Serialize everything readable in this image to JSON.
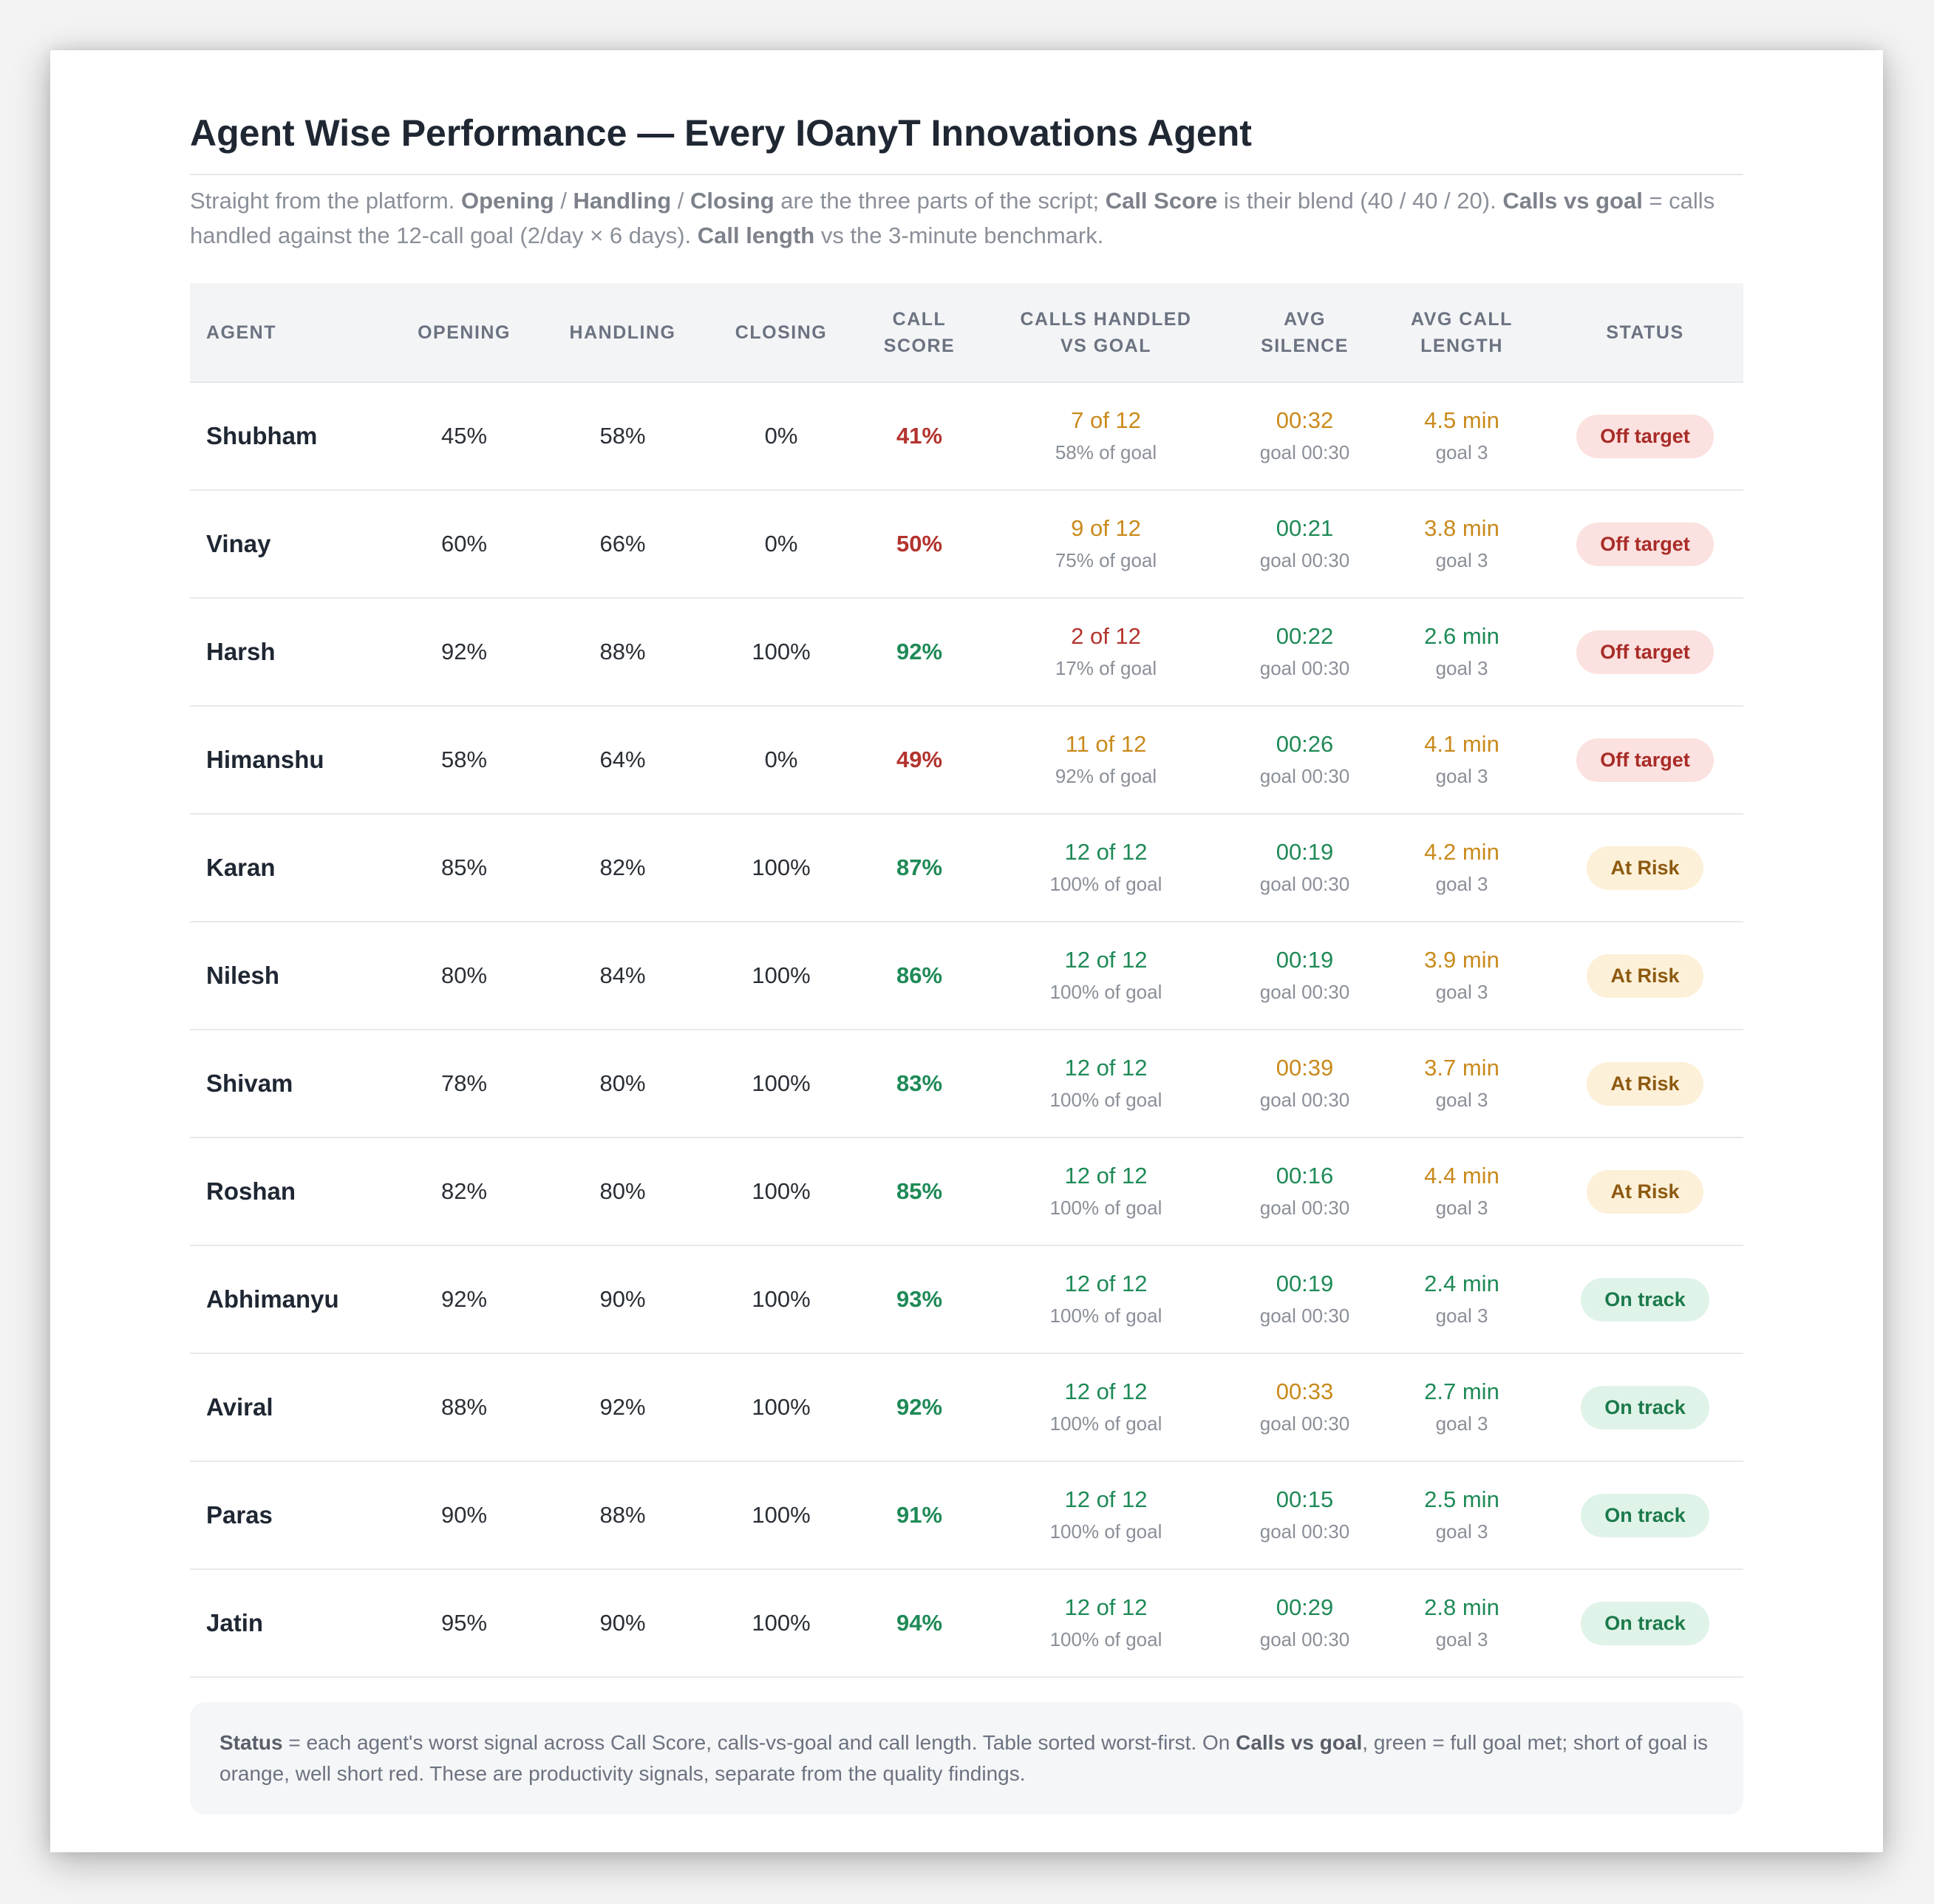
{
  "title": "Agent Wise Performance — Every IOanyT Innovations Agent",
  "subtitle": {
    "t1": "Straight from the platform. ",
    "b1": "Opening",
    "t2": " / ",
    "b2": "Handling",
    "t3": " / ",
    "b3": "Closing",
    "t4": " are the three parts of the script; ",
    "b4": "Call Score",
    "t5": " is their blend (40 / 40 / 20). ",
    "b5": "Calls vs goal",
    "t6": " = calls handled against the 12-call goal (2/day × 6 days). ",
    "b6": "Call length",
    "t7": " vs the 3-minute benchmark."
  },
  "headers": {
    "agent": "Agent",
    "opening": "Opening",
    "handling": "Handling",
    "closing": "Closing",
    "call_score_1": "Call",
    "call_score_2": "Score",
    "calls_1": "Calls handled",
    "calls_2": "vs goal",
    "silence_1": "Avg",
    "silence_2": "Silence",
    "length_1": "Avg call",
    "length_2": "length",
    "status": "Status"
  },
  "colors": {
    "red": "#b3332e",
    "green": "#1f8a57",
    "amber": "#c98a1c"
  },
  "rows": [
    {
      "name": "Shubham",
      "opening": "45%",
      "handling": "58%",
      "closing": "0%",
      "score": "41%",
      "score_color": "red",
      "calls": "7 of 12",
      "calls_pct": "58% of goal",
      "calls_color": "amber",
      "silence": "00:32",
      "silence_goal": "goal 00:30",
      "silence_color": "amber",
      "length": "4.5 min",
      "length_goal": "goal 3",
      "length_color": "amber",
      "status": "Off target",
      "status_type": "off"
    },
    {
      "name": "Vinay",
      "opening": "60%",
      "handling": "66%",
      "closing": "0%",
      "score": "50%",
      "score_color": "red",
      "calls": "9 of 12",
      "calls_pct": "75% of goal",
      "calls_color": "amber",
      "silence": "00:21",
      "silence_goal": "goal 00:30",
      "silence_color": "green",
      "length": "3.8 min",
      "length_goal": "goal 3",
      "length_color": "amber",
      "status": "Off target",
      "status_type": "off"
    },
    {
      "name": "Harsh",
      "opening": "92%",
      "handling": "88%",
      "closing": "100%",
      "score": "92%",
      "score_color": "green",
      "calls": "2 of 12",
      "calls_pct": "17% of goal",
      "calls_color": "red",
      "silence": "00:22",
      "silence_goal": "goal 00:30",
      "silence_color": "green",
      "length": "2.6 min",
      "length_goal": "goal 3",
      "length_color": "green",
      "status": "Off target",
      "status_type": "off"
    },
    {
      "name": "Himanshu",
      "opening": "58%",
      "handling": "64%",
      "closing": "0%",
      "score": "49%",
      "score_color": "red",
      "calls": "11 of 12",
      "calls_pct": "92% of goal",
      "calls_color": "amber",
      "silence": "00:26",
      "silence_goal": "goal 00:30",
      "silence_color": "green",
      "length": "4.1 min",
      "length_goal": "goal 3",
      "length_color": "amber",
      "status": "Off target",
      "status_type": "off"
    },
    {
      "name": "Karan",
      "opening": "85%",
      "handling": "82%",
      "closing": "100%",
      "score": "87%",
      "score_color": "green",
      "calls": "12 of 12",
      "calls_pct": "100% of goal",
      "calls_color": "green",
      "silence": "00:19",
      "silence_goal": "goal 00:30",
      "silence_color": "green",
      "length": "4.2 min",
      "length_goal": "goal 3",
      "length_color": "amber",
      "status": "At Risk",
      "status_type": "risk"
    },
    {
      "name": "Nilesh",
      "opening": "80%",
      "handling": "84%",
      "closing": "100%",
      "score": "86%",
      "score_color": "green",
      "calls": "12 of 12",
      "calls_pct": "100% of goal",
      "calls_color": "green",
      "silence": "00:19",
      "silence_goal": "goal 00:30",
      "silence_color": "green",
      "length": "3.9 min",
      "length_goal": "goal 3",
      "length_color": "amber",
      "status": "At Risk",
      "status_type": "risk"
    },
    {
      "name": "Shivam",
      "opening": "78%",
      "handling": "80%",
      "closing": "100%",
      "score": "83%",
      "score_color": "green",
      "calls": "12 of 12",
      "calls_pct": "100% of goal",
      "calls_color": "green",
      "silence": "00:39",
      "silence_goal": "goal 00:30",
      "silence_color": "amber",
      "length": "3.7 min",
      "length_goal": "goal 3",
      "length_color": "amber",
      "status": "At Risk",
      "status_type": "risk"
    },
    {
      "name": "Roshan",
      "opening": "82%",
      "handling": "80%",
      "closing": "100%",
      "score": "85%",
      "score_color": "green",
      "calls": "12 of 12",
      "calls_pct": "100% of goal",
      "calls_color": "green",
      "silence": "00:16",
      "silence_goal": "goal 00:30",
      "silence_color": "green",
      "length": "4.4 min",
      "length_goal": "goal 3",
      "length_color": "amber",
      "status": "At Risk",
      "status_type": "risk"
    },
    {
      "name": "Abhimanyu",
      "opening": "92%",
      "handling": "90%",
      "closing": "100%",
      "score": "93%",
      "score_color": "green",
      "calls": "12 of 12",
      "calls_pct": "100% of goal",
      "calls_color": "green",
      "silence": "00:19",
      "silence_goal": "goal 00:30",
      "silence_color": "green",
      "length": "2.4 min",
      "length_goal": "goal 3",
      "length_color": "green",
      "status": "On track",
      "status_type": "on"
    },
    {
      "name": "Aviral",
      "opening": "88%",
      "handling": "92%",
      "closing": "100%",
      "score": "92%",
      "score_color": "green",
      "calls": "12 of 12",
      "calls_pct": "100% of goal",
      "calls_color": "green",
      "silence": "00:33",
      "silence_goal": "goal 00:30",
      "silence_color": "amber",
      "length": "2.7 min",
      "length_goal": "goal 3",
      "length_color": "green",
      "status": "On track",
      "status_type": "on"
    },
    {
      "name": "Paras",
      "opening": "90%",
      "handling": "88%",
      "closing": "100%",
      "score": "91%",
      "score_color": "green",
      "calls": "12 of 12",
      "calls_pct": "100% of goal",
      "calls_color": "green",
      "silence": "00:15",
      "silence_goal": "goal 00:30",
      "silence_color": "green",
      "length": "2.5 min",
      "length_goal": "goal 3",
      "length_color": "green",
      "status": "On track",
      "status_type": "on"
    },
    {
      "name": "Jatin",
      "opening": "95%",
      "handling": "90%",
      "closing": "100%",
      "score": "94%",
      "score_color": "green",
      "calls": "12 of 12",
      "calls_pct": "100% of goal",
      "calls_color": "green",
      "silence": "00:29",
      "silence_goal": "goal 00:30",
      "silence_color": "green",
      "length": "2.8 min",
      "length_goal": "goal 3",
      "length_color": "green",
      "status": "On track",
      "status_type": "on"
    }
  ],
  "note": {
    "b1": "Status",
    "t1": " = each agent's worst signal across Call Score, calls-vs-goal and call length. Table sorted worst-first. On ",
    "b2": "Calls vs goal",
    "t2": ", green = full goal met; short of goal is orange, well short red. These are productivity signals, separate from the quality findings."
  }
}
